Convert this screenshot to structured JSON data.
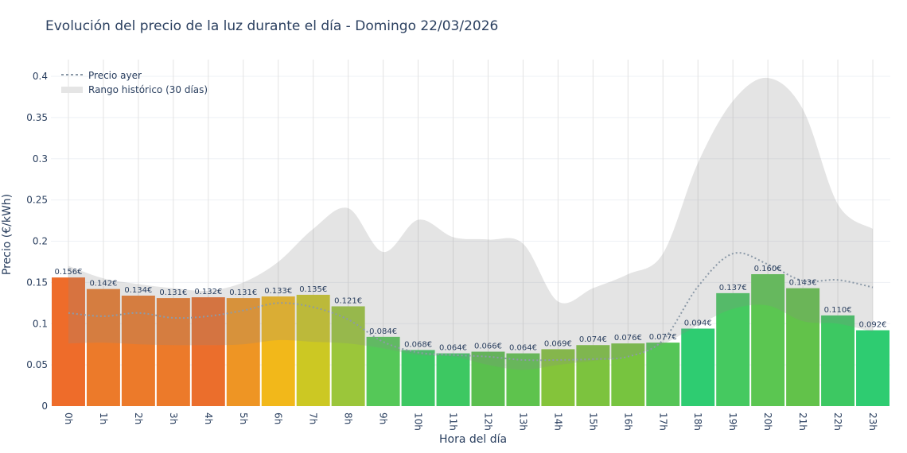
{
  "chart_data": {
    "type": "bar",
    "title": "Evolución del precio de la luz durante el día - Domingo 22/03/2026",
    "xlabel": "Hora del día",
    "ylabel": "Precio (€/kWh)",
    "ylim": [
      0,
      0.42
    ],
    "yticks": [
      0,
      0.05,
      0.1,
      0.15,
      0.2,
      0.25,
      0.3,
      0.35,
      0.4
    ],
    "grid": true,
    "legend_placement": "top-left",
    "categories": [
      "0h",
      "1h",
      "2h",
      "3h",
      "4h",
      "5h",
      "6h",
      "7h",
      "8h",
      "9h",
      "10h",
      "11h",
      "12h",
      "13h",
      "14h",
      "15h",
      "16h",
      "17h",
      "18h",
      "19h",
      "20h",
      "21h",
      "22h",
      "23h"
    ],
    "values": [
      0.156,
      0.142,
      0.134,
      0.131,
      0.132,
      0.131,
      0.133,
      0.135,
      0.121,
      0.084,
      0.068,
      0.064,
      0.066,
      0.064,
      0.069,
      0.074,
      0.076,
      0.077,
      0.094,
      0.137,
      0.16,
      0.143,
      0.11,
      0.092
    ],
    "value_labels": [
      "0.156€",
      "0.142€",
      "0.134€",
      "0.131€",
      "0.132€",
      "0.131€",
      "0.133€",
      "0.135€",
      "0.121€",
      "0.084€",
      "0.068€",
      "0.064€",
      "0.066€",
      "0.064€",
      "0.069€",
      "0.074€",
      "0.076€",
      "0.077€",
      "0.094€",
      "0.137€",
      "0.160€",
      "0.143€",
      "0.110€",
      "0.092€"
    ],
    "bar_colors": [
      "#ee6c2a",
      "#ec7a2a",
      "#ec7a2a",
      "#ec7a2a",
      "#eb6e2c",
      "#ee9524",
      "#f2b81a",
      "#ccc823",
      "#9bc63a",
      "#55c858",
      "#3dc862",
      "#3dc862",
      "#5abf4e",
      "#5ec34d",
      "#84c43a",
      "#7cc33e",
      "#77c43f",
      "#55c557",
      "#2ecc71",
      "#45c960",
      "#5bc651",
      "#62c24a",
      "#3dc862",
      "#2ecc71"
    ],
    "series": [
      {
        "name": "Precio ayer",
        "style": "dotted",
        "color": "#8c9aa8",
        "values": [
          0.113,
          0.109,
          0.113,
          0.107,
          0.109,
          0.116,
          0.125,
          0.12,
          0.105,
          0.078,
          0.065,
          0.062,
          0.06,
          0.056,
          0.056,
          0.057,
          0.06,
          0.08,
          0.145,
          0.185,
          0.172,
          0.152,
          0.153,
          0.144
        ]
      },
      {
        "name": "Rango histórico (30 días)",
        "style": "band",
        "color": "#e5e5e5",
        "upper": [
          0.17,
          0.155,
          0.148,
          0.143,
          0.14,
          0.15,
          0.175,
          0.215,
          0.24,
          0.187,
          0.226,
          0.205,
          0.202,
          0.197,
          0.127,
          0.143,
          0.16,
          0.185,
          0.295,
          0.37,
          0.398,
          0.36,
          0.245,
          0.215
        ],
        "lower": [
          0.076,
          0.077,
          0.075,
          0.074,
          0.074,
          0.075,
          0.08,
          0.078,
          0.076,
          0.07,
          0.062,
          0.06,
          0.05,
          0.044,
          0.05,
          0.055,
          0.06,
          0.075,
          0.098,
          0.118,
          0.122,
          0.103,
          0.1,
          0.09
        ]
      }
    ]
  }
}
